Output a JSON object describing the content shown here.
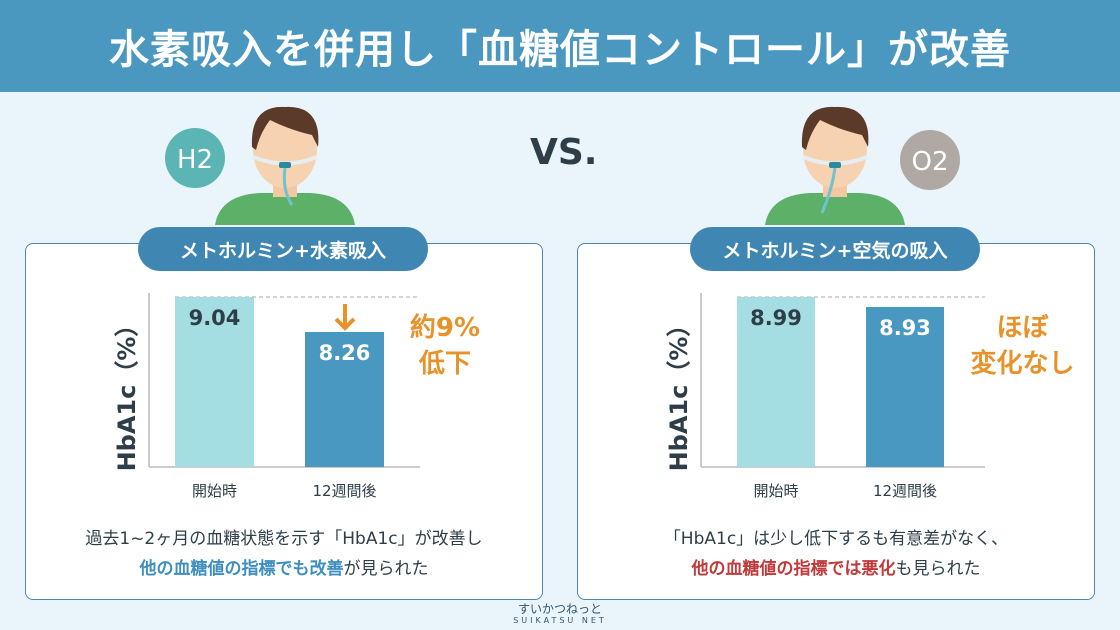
{
  "title": "水素吸入を併用し「血糖値コントロール」が改善",
  "vs_label": "VS.",
  "left": {
    "badge": "H2",
    "badge_color": "#5bb5b5",
    "pill": "メトホルミン+水素吸入",
    "annotation": [
      "約9%",
      "低下"
    ],
    "caption_line1": "過去1~2ヶ月の血糖状態を示す「HbA1c」が改善し",
    "caption_highlight": "他の血糖値の指標でも改善",
    "caption_rest": "が見られた",
    "highlight_color": "#3e8fbf"
  },
  "right": {
    "badge": "O2",
    "badge_color": "#b0a9a3",
    "pill": "メトホルミン+空気の吸入",
    "annotation": [
      "ほぼ",
      "変化なし"
    ],
    "caption_line1": "「HbA1c」は少し低下するも有意差がなく、",
    "caption_highlight": "他の血糖値の指標では悪化",
    "caption_rest": "も見られた",
    "highlight_color": "#c0393b"
  },
  "logo": {
    "jp": "すいかつねっと",
    "en": "SUIKATSU NET"
  },
  "chart_data": [
    {
      "type": "bar",
      "title": "メトホルミン+水素吸入",
      "categories": [
        "開始時",
        "12週間後"
      ],
      "values": [
        9.04,
        8.26
      ],
      "value_labels": [
        "9.04",
        "8.26"
      ],
      "colors": [
        "#a4dee3",
        "#4898c2"
      ],
      "ylabel": "HbA1c（%）",
      "ylim": [
        5.25,
        9.04
      ]
    },
    {
      "type": "bar",
      "title": "メトホルミン+空気の吸入",
      "categories": [
        "開始時",
        "12週間後"
      ],
      "values": [
        8.99,
        8.93
      ],
      "value_labels": [
        "8.99",
        "8.93"
      ],
      "colors": [
        "#a4dee3",
        "#4898c2"
      ],
      "ylabel": "HbA1c（%）",
      "ylim": [
        7.97,
        8.99
      ]
    }
  ]
}
